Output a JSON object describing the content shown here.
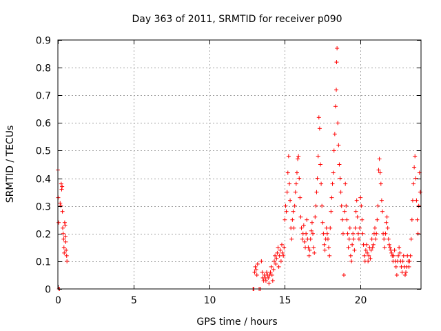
{
  "chart_data": {
    "type": "scatter",
    "title": "Day 363 of 2011, SRMTID for receiver p090",
    "xlabel": "GPS time / hours",
    "ylabel": "SRMTID / TECUs",
    "xlim": [
      0,
      24
    ],
    "ylim": [
      0,
      0.9
    ],
    "x_ticks": [
      0,
      5,
      10,
      15,
      20
    ],
    "x_tick_labels": [
      "0",
      "5",
      "10",
      "15",
      "20"
    ],
    "y_ticks": [
      0,
      0.1,
      0.2,
      0.3,
      0.4,
      0.5,
      0.6,
      0.7,
      0.8,
      0.9
    ],
    "y_tick_labels": [
      "0",
      "0.1",
      "0.2",
      "0.3",
      "0.4",
      "0.5",
      "0.6",
      "0.7",
      "0.8",
      "0.9"
    ],
    "grid": true,
    "marker": "+",
    "marker_color": "#ff0000",
    "series": [
      {
        "name": "SRMTID",
        "points": [
          [
            0.0,
            0.43
          ],
          [
            0.02,
            0.33
          ],
          [
            0.05,
            0.24
          ],
          [
            0.08,
            0.0
          ],
          [
            0.1,
            0.0
          ],
          [
            0.15,
            0.31
          ],
          [
            0.2,
            0.3
          ],
          [
            0.22,
            0.38
          ],
          [
            0.25,
            0.36
          ],
          [
            0.28,
            0.37
          ],
          [
            0.3,
            0.28
          ],
          [
            0.32,
            0.22
          ],
          [
            0.35,
            0.2
          ],
          [
            0.38,
            0.18
          ],
          [
            0.4,
            0.15
          ],
          [
            0.42,
            0.13
          ],
          [
            0.45,
            0.24
          ],
          [
            0.48,
            0.23
          ],
          [
            0.5,
            0.19
          ],
          [
            0.52,
            0.17
          ],
          [
            0.55,
            0.14
          ],
          [
            0.58,
            0.12
          ],
          [
            0.6,
            0.1
          ],
          [
            12.9,
            0.0
          ],
          [
            12.95,
            0.0
          ],
          [
            13.0,
            0.06
          ],
          [
            13.05,
            0.08
          ],
          [
            13.1,
            0.07
          ],
          [
            13.15,
            0.05
          ],
          [
            13.2,
            0.09
          ],
          [
            13.3,
            0.0
          ],
          [
            13.4,
            0.0
          ],
          [
            13.45,
            0.1
          ],
          [
            13.5,
            0.06
          ],
          [
            13.55,
            0.04
          ],
          [
            13.6,
            0.03
          ],
          [
            13.65,
            0.05
          ],
          [
            13.7,
            0.04
          ],
          [
            13.75,
            0.03
          ],
          [
            13.8,
            0.06
          ],
          [
            13.85,
            0.05
          ],
          [
            13.9,
            0.04
          ],
          [
            13.95,
            0.02
          ],
          [
            14.0,
            0.05
          ],
          [
            14.05,
            0.06
          ],
          [
            14.1,
            0.08
          ],
          [
            14.15,
            0.05
          ],
          [
            14.2,
            0.03
          ],
          [
            14.25,
            0.07
          ],
          [
            14.3,
            0.1
          ],
          [
            14.35,
            0.12
          ],
          [
            14.4,
            0.09
          ],
          [
            14.45,
            0.11
          ],
          [
            14.5,
            0.13
          ],
          [
            14.55,
            0.15
          ],
          [
            14.6,
            0.08
          ],
          [
            14.65,
            0.12
          ],
          [
            14.7,
            0.14
          ],
          [
            14.75,
            0.1
          ],
          [
            14.8,
            0.16
          ],
          [
            14.85,
            0.13
          ],
          [
            14.9,
            0.12
          ],
          [
            14.95,
            0.15
          ],
          [
            15.0,
            0.25
          ],
          [
            15.05,
            0.3
          ],
          [
            15.1,
            0.28
          ],
          [
            15.15,
            0.35
          ],
          [
            15.2,
            0.42
          ],
          [
            15.25,
            0.48
          ],
          [
            15.3,
            0.38
          ],
          [
            15.35,
            0.32
          ],
          [
            15.4,
            0.22
          ],
          [
            15.45,
            0.18
          ],
          [
            15.5,
            0.25
          ],
          [
            15.55,
            0.28
          ],
          [
            15.6,
            0.22
          ],
          [
            15.65,
            0.3
          ],
          [
            15.7,
            0.35
          ],
          [
            15.75,
            0.38
          ],
          [
            15.8,
            0.42
          ],
          [
            15.85,
            0.47
          ],
          [
            15.9,
            0.48
          ],
          [
            15.95,
            0.4
          ],
          [
            16.0,
            0.33
          ],
          [
            16.05,
            0.26
          ],
          [
            16.1,
            0.22
          ],
          [
            16.15,
            0.18
          ],
          [
            16.2,
            0.2
          ],
          [
            16.25,
            0.23
          ],
          [
            16.3,
            0.17
          ],
          [
            16.35,
            0.15
          ],
          [
            16.4,
            0.2
          ],
          [
            16.45,
            0.25
          ],
          [
            16.5,
            0.18
          ],
          [
            16.55,
            0.15
          ],
          [
            16.6,
            0.12
          ],
          [
            16.65,
            0.14
          ],
          [
            16.7,
            0.18
          ],
          [
            16.75,
            0.21
          ],
          [
            16.8,
            0.24
          ],
          [
            16.85,
            0.2
          ],
          [
            16.9,
            0.15
          ],
          [
            16.95,
            0.13
          ],
          [
            17.0,
            0.26
          ],
          [
            17.05,
            0.3
          ],
          [
            17.1,
            0.35
          ],
          [
            17.15,
            0.4
          ],
          [
            17.2,
            0.48
          ],
          [
            17.25,
            0.62
          ],
          [
            17.3,
            0.58
          ],
          [
            17.35,
            0.45
          ],
          [
            17.4,
            0.38
          ],
          [
            17.45,
            0.3
          ],
          [
            17.5,
            0.24
          ],
          [
            17.55,
            0.2
          ],
          [
            17.6,
            0.16
          ],
          [
            17.65,
            0.14
          ],
          [
            17.7,
            0.18
          ],
          [
            17.75,
            0.22
          ],
          [
            17.8,
            0.2
          ],
          [
            17.85,
            0.18
          ],
          [
            17.9,
            0.15
          ],
          [
            17.95,
            0.12
          ],
          [
            18.0,
            0.22
          ],
          [
            18.05,
            0.28
          ],
          [
            18.1,
            0.33
          ],
          [
            18.15,
            0.38
          ],
          [
            18.2,
            0.42
          ],
          [
            18.25,
            0.5
          ],
          [
            18.3,
            0.56
          ],
          [
            18.35,
            0.66
          ],
          [
            18.4,
            0.72
          ],
          [
            18.42,
            0.82
          ],
          [
            18.45,
            0.87
          ],
          [
            18.5,
            0.6
          ],
          [
            18.55,
            0.52
          ],
          [
            18.6,
            0.45
          ],
          [
            18.65,
            0.4
          ],
          [
            18.7,
            0.35
          ],
          [
            18.75,
            0.3
          ],
          [
            18.8,
            0.25
          ],
          [
            18.85,
            0.2
          ],
          [
            18.9,
            0.05
          ],
          [
            18.95,
            0.28
          ],
          [
            19.0,
            0.38
          ],
          [
            19.05,
            0.3
          ],
          [
            19.1,
            0.25
          ],
          [
            19.15,
            0.2
          ],
          [
            19.2,
            0.15
          ],
          [
            19.25,
            0.18
          ],
          [
            19.3,
            0.22
          ],
          [
            19.35,
            0.12
          ],
          [
            19.4,
            0.1
          ],
          [
            19.45,
            0.16
          ],
          [
            19.5,
            0.2
          ],
          [
            19.55,
            0.18
          ],
          [
            19.6,
            0.14
          ],
          [
            19.65,
            0.22
          ],
          [
            19.7,
            0.28
          ],
          [
            19.75,
            0.32
          ],
          [
            19.8,
            0.26
          ],
          [
            19.85,
            0.2
          ],
          [
            19.9,
            0.18
          ],
          [
            19.95,
            0.22
          ],
          [
            20.0,
            0.33
          ],
          [
            20.05,
            0.3
          ],
          [
            20.1,
            0.25
          ],
          [
            20.15,
            0.2
          ],
          [
            20.2,
            0.16
          ],
          [
            20.25,
            0.12
          ],
          [
            20.3,
            0.1
          ],
          [
            20.35,
            0.14
          ],
          [
            20.4,
            0.16
          ],
          [
            20.45,
            0.13
          ],
          [
            20.5,
            0.1
          ],
          [
            20.55,
            0.12
          ],
          [
            20.6,
            0.15
          ],
          [
            20.65,
            0.11
          ],
          [
            20.7,
            0.14
          ],
          [
            20.75,
            0.18
          ],
          [
            20.8,
            0.15
          ],
          [
            20.85,
            0.16
          ],
          [
            20.9,
            0.2
          ],
          [
            20.95,
            0.22
          ],
          [
            21.0,
            0.18
          ],
          [
            21.05,
            0.2
          ],
          [
            21.1,
            0.25
          ],
          [
            21.15,
            0.3
          ],
          [
            21.2,
            0.43
          ],
          [
            21.25,
            0.47
          ],
          [
            21.3,
            0.42
          ],
          [
            21.35,
            0.38
          ],
          [
            21.4,
            0.32
          ],
          [
            21.45,
            0.28
          ],
          [
            21.5,
            0.2
          ],
          [
            21.55,
            0.18
          ],
          [
            21.6,
            0.15
          ],
          [
            21.65,
            0.2
          ],
          [
            21.7,
            0.24
          ],
          [
            21.75,
            0.26
          ],
          [
            21.8,
            0.22
          ],
          [
            21.85,
            0.18
          ],
          [
            21.9,
            0.16
          ],
          [
            21.95,
            0.15
          ],
          [
            22.0,
            0.14
          ],
          [
            22.05,
            0.13
          ],
          [
            22.1,
            0.12
          ],
          [
            22.15,
            0.1
          ],
          [
            22.2,
            0.12
          ],
          [
            22.25,
            0.14
          ],
          [
            22.3,
            0.1
          ],
          [
            22.35,
            0.08
          ],
          [
            22.4,
            0.05
          ],
          [
            22.45,
            0.1
          ],
          [
            22.5,
            0.12
          ],
          [
            22.55,
            0.15
          ],
          [
            22.6,
            0.13
          ],
          [
            22.65,
            0.1
          ],
          [
            22.7,
            0.08
          ],
          [
            22.75,
            0.06
          ],
          [
            22.8,
            0.1
          ],
          [
            22.85,
            0.12
          ],
          [
            22.9,
            0.08
          ],
          [
            22.95,
            0.05
          ],
          [
            23.0,
            0.06
          ],
          [
            23.05,
            0.08
          ],
          [
            23.1,
            0.12
          ],
          [
            23.15,
            0.1
          ],
          [
            23.2,
            0.08
          ],
          [
            23.25,
            0.1
          ],
          [
            23.3,
            0.12
          ],
          [
            23.35,
            0.18
          ],
          [
            23.4,
            0.25
          ],
          [
            23.45,
            0.32
          ],
          [
            23.5,
            0.38
          ],
          [
            23.55,
            0.44
          ],
          [
            23.6,
            0.48
          ],
          [
            23.65,
            0.4
          ],
          [
            23.7,
            0.32
          ],
          [
            23.75,
            0.25
          ],
          [
            23.8,
            0.2
          ],
          [
            23.85,
            0.3
          ],
          [
            23.9,
            0.42
          ],
          [
            23.95,
            0.35
          ]
        ]
      }
    ]
  }
}
